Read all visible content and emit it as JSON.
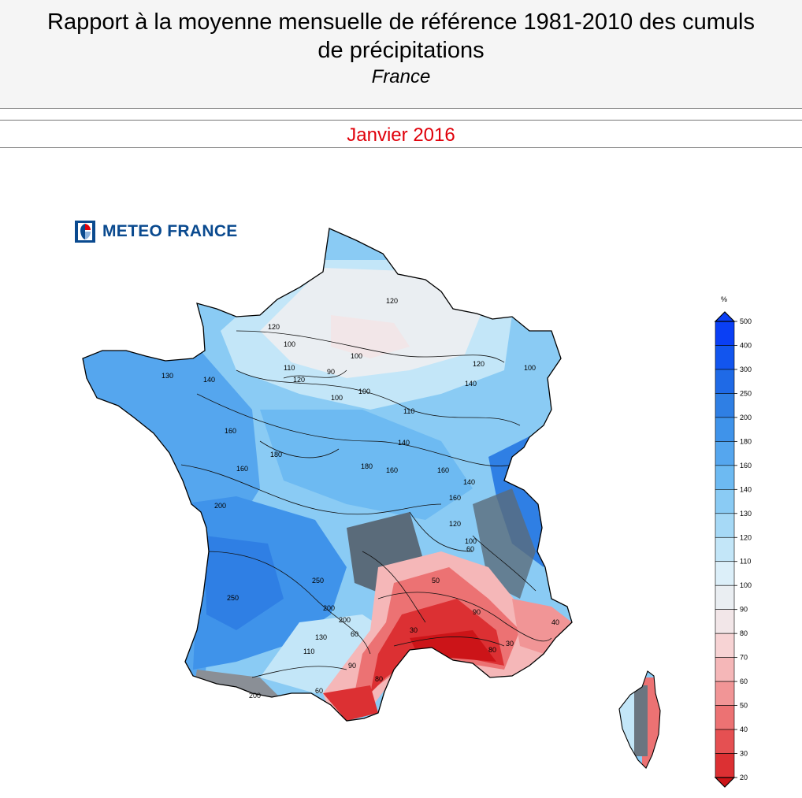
{
  "header": {
    "title_line1": "Rapport à la moyenne mensuelle de référence 1981-2010 des cumuls",
    "title_line2": "de précipitations",
    "region": "France"
  },
  "period": "Janvier 2016",
  "logo": {
    "text": "METEO FRANCE",
    "icon": "meteo-france-logo-icon"
  },
  "legend": {
    "unit": "%",
    "levels": [
      "500",
      "400",
      "300",
      "250",
      "200",
      "180",
      "160",
      "140",
      "130",
      "120",
      "110",
      "100",
      "90",
      "80",
      "70",
      "60",
      "50",
      "40",
      "30",
      "20"
    ],
    "colors": [
      "#0a3ff5",
      "#1255ee",
      "#1f6ae6",
      "#2f7fe4",
      "#3f93ea",
      "#55a6ee",
      "#6dbaf2",
      "#8acbf4",
      "#a6d9f6",
      "#c3e6f8",
      "#dceff9",
      "#eaeef2",
      "#f2e6e8",
      "#f7d3d4",
      "#f5b7b8",
      "#f19596",
      "#ec7273",
      "#e55052",
      "#dc3033",
      "#cc1418"
    ]
  },
  "contour_labels": [
    "120",
    "120",
    "100",
    "100",
    "110",
    "120",
    "100",
    "100",
    "90",
    "110",
    "130",
    "140",
    "120",
    "140",
    "160",
    "180",
    "160",
    "160",
    "180",
    "140",
    "160",
    "140",
    "160",
    "120",
    "100",
    "90",
    "200",
    "250",
    "250",
    "200",
    "200",
    "130",
    "110",
    "60",
    "90",
    "80",
    "60",
    "50",
    "30",
    "30",
    "40",
    "200",
    "100",
    "80",
    "60"
  ],
  "colors": {
    "title": "#000000",
    "period": "#e0000a",
    "logo": "#0a4a8f"
  }
}
